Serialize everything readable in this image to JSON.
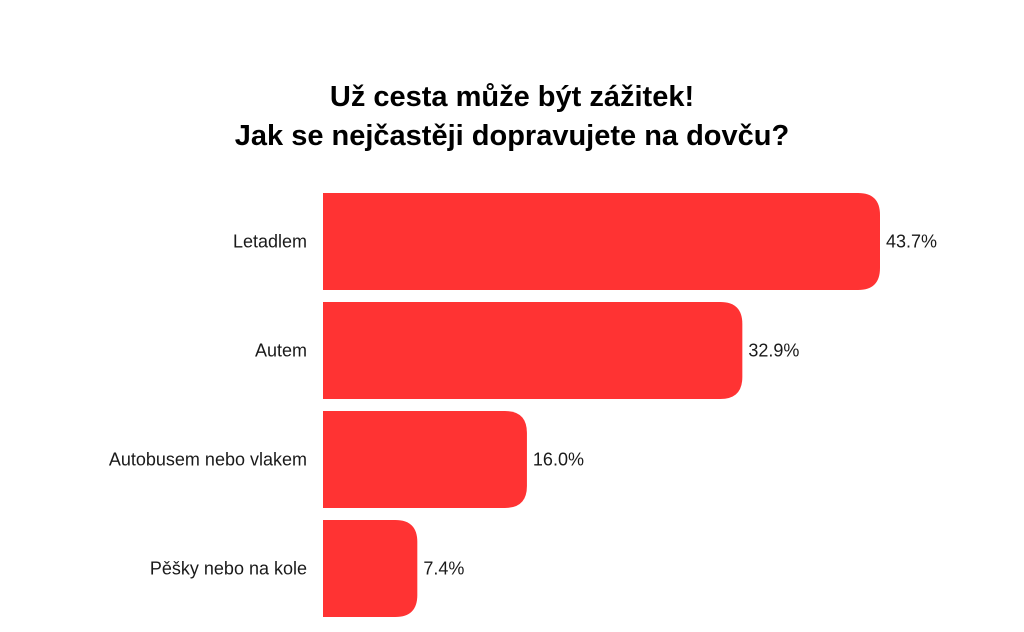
{
  "chart_data": {
    "type": "bar",
    "orientation": "horizontal",
    "title_lines": [
      "Už cesta může být zážitek!",
      "Jak se nejčastěji dopravujete na dovču?"
    ],
    "categories": [
      "Letadlem",
      "Autem",
      "Autobusem nebo vlakem",
      "Pěšky nebo na kole"
    ],
    "values": [
      43.7,
      32.9,
      16.0,
      7.4
    ],
    "value_labels": [
      "43.7%",
      "32.9%",
      "16.0%",
      "7.4%"
    ],
    "unit": "%",
    "xlim": [
      0,
      43.7
    ],
    "grid": false,
    "legend": "none",
    "bar_color": "#ff3333"
  }
}
